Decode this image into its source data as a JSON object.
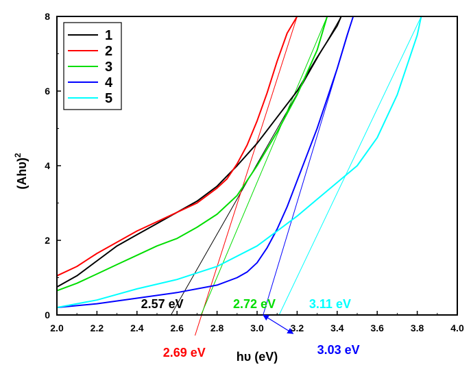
{
  "chart_data": {
    "type": "line",
    "xlabel": "hυ (eV)",
    "ylabel": "(Ahυ)",
    "ylabel_sup": "2",
    "xlim": [
      2.0,
      4.0
    ],
    "ylim": [
      0,
      8
    ],
    "xticks": [
      2.0,
      2.2,
      2.4,
      2.6,
      2.8,
      3.0,
      3.2,
      3.4,
      3.6,
      3.8,
      4.0
    ],
    "xtick_labels": [
      "2.0",
      "2.2",
      "2.4",
      "2.6",
      "2.8",
      "3.0",
      "3.2",
      "3.4",
      "3.6",
      "3.8",
      "4.0"
    ],
    "yticks": [
      0,
      2,
      4,
      6,
      8
    ],
    "ytick_labels": [
      "0",
      "2",
      "4",
      "6",
      "8"
    ],
    "legend_position": "top-left",
    "series": [
      {
        "name": "1",
        "color": "#000000",
        "x": [
          2.0,
          2.1,
          2.2,
          2.3,
          2.4,
          2.5,
          2.6,
          2.7,
          2.8,
          2.9,
          3.0,
          3.1,
          3.2,
          3.3,
          3.4,
          3.42
        ],
        "y": [
          0.75,
          1.05,
          1.45,
          1.85,
          2.15,
          2.45,
          2.75,
          3.05,
          3.45,
          4.0,
          4.6,
          5.3,
          6.0,
          6.9,
          7.75,
          8.0
        ]
      },
      {
        "name": "2",
        "color": "#ff0000",
        "x": [
          2.0,
          2.1,
          2.2,
          2.3,
          2.4,
          2.5,
          2.6,
          2.7,
          2.8,
          2.85,
          2.9,
          2.95,
          3.0,
          3.05,
          3.1,
          3.15,
          3.2
        ],
        "y": [
          1.05,
          1.3,
          1.65,
          1.95,
          2.25,
          2.5,
          2.75,
          3.0,
          3.4,
          3.65,
          4.05,
          4.55,
          5.2,
          5.95,
          6.8,
          7.55,
          8.0
        ]
      },
      {
        "name": "3",
        "color": "#00dd00",
        "x": [
          2.0,
          2.1,
          2.2,
          2.3,
          2.4,
          2.5,
          2.6,
          2.7,
          2.8,
          2.9,
          3.0,
          3.1,
          3.2,
          3.3,
          3.35
        ],
        "y": [
          0.65,
          0.85,
          1.1,
          1.35,
          1.6,
          1.85,
          2.05,
          2.35,
          2.7,
          3.2,
          4.0,
          4.9,
          5.9,
          7.1,
          8.0
        ]
      },
      {
        "name": "4",
        "color": "#0000ff",
        "x": [
          2.0,
          2.2,
          2.4,
          2.6,
          2.8,
          2.9,
          2.95,
          3.0,
          3.05,
          3.1,
          3.15,
          3.2,
          3.25,
          3.3,
          3.35,
          3.4,
          3.45,
          3.48
        ],
        "y": [
          0.2,
          0.3,
          0.45,
          0.6,
          0.8,
          1.0,
          1.15,
          1.4,
          1.8,
          2.3,
          2.9,
          3.6,
          4.3,
          5.0,
          5.8,
          6.6,
          7.5,
          8.0
        ]
      },
      {
        "name": "5",
        "color": "#00ffff",
        "x": [
          2.0,
          2.2,
          2.4,
          2.6,
          2.8,
          3.0,
          3.1,
          3.2,
          3.3,
          3.4,
          3.5,
          3.6,
          3.7,
          3.75,
          3.8,
          3.82
        ],
        "y": [
          0.2,
          0.4,
          0.7,
          0.95,
          1.3,
          1.85,
          2.25,
          2.65,
          3.1,
          3.55,
          4.0,
          4.75,
          5.9,
          6.7,
          7.5,
          8.0
        ]
      }
    ],
    "tangent_lines": [
      {
        "series": "1",
        "color": "#000000",
        "from": [
          3.42,
          8.0
        ],
        "to": [
          2.57,
          0.0
        ]
      },
      {
        "series": "2",
        "color": "#ff0000",
        "from": [
          3.2,
          8.0
        ],
        "to": [
          2.69,
          -0.55
        ]
      },
      {
        "series": "3",
        "color": "#00dd00",
        "from": [
          3.35,
          8.0
        ],
        "to": [
          2.72,
          0.0
        ]
      },
      {
        "series": "4",
        "color": "#0000ff",
        "from": [
          3.48,
          8.0
        ],
        "to": [
          3.03,
          0.0
        ]
      },
      {
        "series": "5",
        "color": "#00ffff",
        "from": [
          3.82,
          8.0
        ],
        "to": [
          3.11,
          0.0
        ]
      }
    ],
    "annotations": [
      {
        "text": "2.57 eV",
        "color": "#000000",
        "x": 2.42,
        "y": 0.18,
        "arrow_to": [
          2.57,
          0.0
        ]
      },
      {
        "text": "2.72 eV",
        "color": "#00dd00",
        "x": 2.88,
        "y": 0.18,
        "arrow_to": [
          2.72,
          0.0
        ]
      },
      {
        "text": "3.11 eV",
        "color": "#00ffff",
        "x": 3.26,
        "y": 0.18,
        "arrow_to": [
          3.11,
          0.0
        ]
      },
      {
        "text": "2.69 eV",
        "color": "#ff0000",
        "x": 2.53,
        "y": -1.12,
        "arrow_to": [
          2.69,
          -0.55
        ]
      },
      {
        "text": "3.03 eV",
        "color": "#0000ff",
        "x": 3.3,
        "y": -1.05,
        "arrow_from": [
          3.03,
          0.0
        ],
        "arrow_to": [
          3.18,
          -0.5
        ]
      }
    ]
  }
}
